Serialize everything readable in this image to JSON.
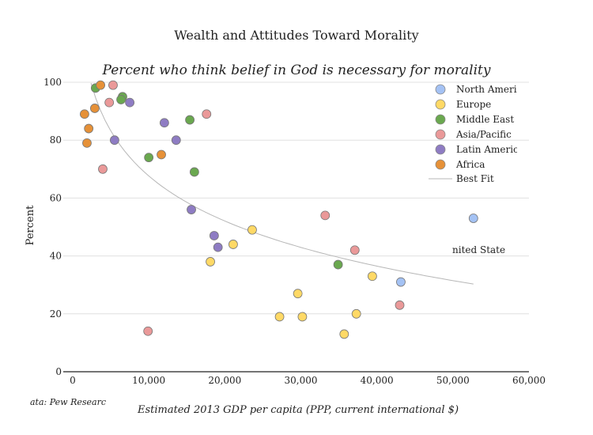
{
  "chart_data": {
    "type": "scatter",
    "title": "Wealth and Attitudes Toward Morality",
    "subtitle": "Percent who think belief in God is necessary for morality",
    "xlabel": "Estimated 2013 GDP per capita (PPP, current international $)",
    "ylabel": "Percent",
    "source_text": "ata: Pew Researc",
    "xlim": [
      0,
      60000
    ],
    "ylim": [
      0,
      100
    ],
    "x_ticks": [
      "0",
      "10,000",
      "20,000",
      "30,000",
      "40,000",
      "50,000",
      "60,000"
    ],
    "y_ticks": [
      "0",
      "20",
      "40",
      "60",
      "80",
      "100"
    ],
    "grid": "horizontal",
    "legend_placement": "top-right",
    "annotation": {
      "text": "nited State",
      "x": 52700,
      "y": 53
    },
    "series": [
      {
        "name": "North Ameri",
        "color": "#a4c2f4",
        "points": [
          [
            43150,
            31
          ],
          [
            52700,
            53
          ]
        ]
      },
      {
        "name": "Europe",
        "color": "#ffd966",
        "points": [
          [
            18100,
            38
          ],
          [
            21100,
            44
          ],
          [
            23600,
            49
          ],
          [
            27200,
            19
          ],
          [
            29600,
            27
          ],
          [
            30200,
            19
          ],
          [
            35700,
            13
          ],
          [
            37300,
            20
          ],
          [
            39400,
            33
          ]
        ]
      },
      {
        "name": "Middle East",
        "color": "#6aa84f",
        "points": [
          [
            3000,
            98
          ],
          [
            6550,
            95
          ],
          [
            6350,
            94
          ],
          [
            10000,
            74
          ],
          [
            15400,
            87
          ],
          [
            16000,
            69
          ],
          [
            34900,
            37
          ]
        ]
      },
      {
        "name": "Asia/Pacific",
        "color": "#ea9999",
        "points": [
          [
            5300,
            99
          ],
          [
            4800,
            93
          ],
          [
            3950,
            70
          ],
          [
            9900,
            14
          ],
          [
            17600,
            89
          ],
          [
            33200,
            54
          ],
          [
            37100,
            42
          ],
          [
            43000,
            23
          ]
        ]
      },
      {
        "name": "Latin Americ",
        "color": "#8e7cc3",
        "points": [
          [
            7500,
            93
          ],
          [
            5500,
            80
          ],
          [
            12050,
            86
          ],
          [
            13600,
            80
          ],
          [
            15600,
            56
          ],
          [
            18600,
            47
          ],
          [
            19100,
            43
          ]
        ]
      },
      {
        "name": "Africa",
        "color": "#e69138",
        "points": [
          [
            3650,
            99
          ],
          [
            1550,
            89
          ],
          [
            2900,
            91
          ],
          [
            2100,
            84
          ],
          [
            1870,
            79
          ],
          [
            11650,
            75
          ]
        ]
      }
    ],
    "best_fit": {
      "name": "Best Fit",
      "type": "logarithmic",
      "a": 274.6,
      "b": -22.47,
      "x_range": [
        2400,
        52700
      ],
      "color": "#b7b7b7"
    }
  }
}
